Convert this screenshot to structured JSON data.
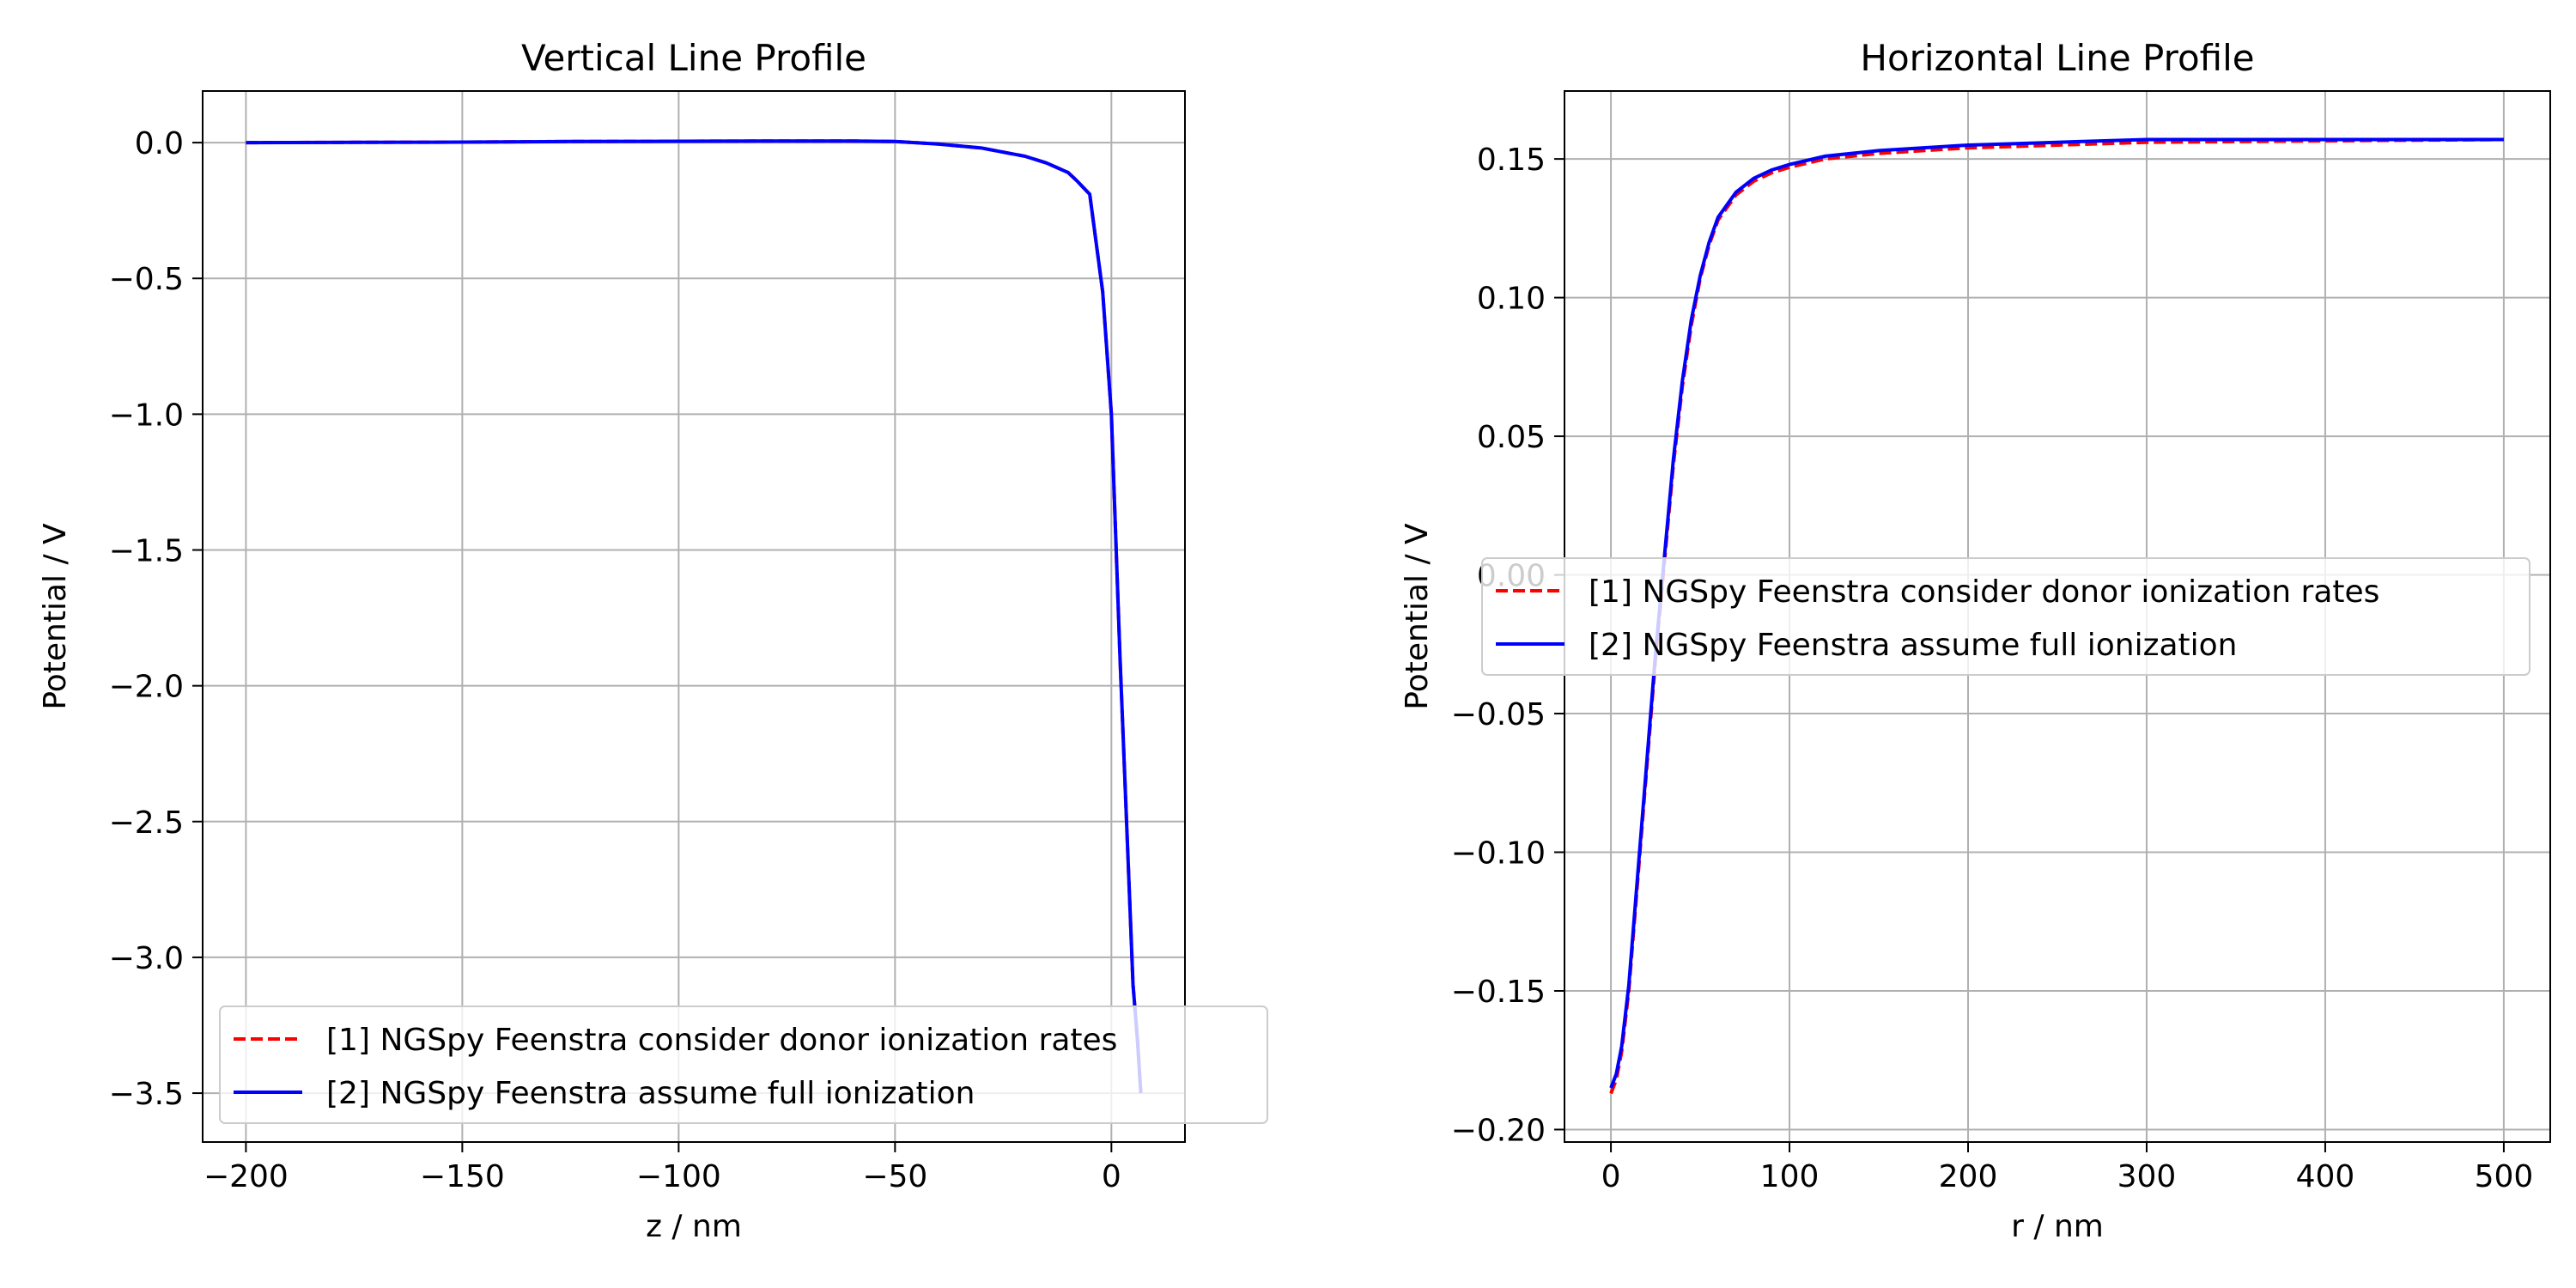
{
  "colors": {
    "series1": "#ff0000",
    "series2": "#0000ff",
    "grid": "#b0b0b0",
    "axis": "#000000"
  },
  "chart_data": [
    {
      "type": "line",
      "title": "Vertical Line Profile",
      "xlabel": "z / nm",
      "ylabel": "Potential / V",
      "xlim": [
        -210,
        17
      ],
      "ylim": [
        -3.68,
        0.19
      ],
      "xticks": [
        -200,
        -150,
        -100,
        -50,
        0
      ],
      "xtick_labels": [
        "−200",
        "−150",
        "−100",
        "−50",
        "0"
      ],
      "yticks": [
        0.0,
        -0.5,
        -1.0,
        -1.5,
        -2.0,
        -2.5,
        -3.0,
        -3.5
      ],
      "ytick_labels": [
        "0.0",
        "−0.5",
        "−1.0",
        "−1.5",
        "−2.0",
        "−2.5",
        "−3.0",
        "−3.5"
      ],
      "grid": true,
      "legend_position": "lower-right",
      "series": [
        {
          "name": "[1] NGSpy Feenstra consider donor ionization rates",
          "style": "dashed",
          "x": [
            -200,
            -175,
            -150,
            -125,
            -100,
            -75,
            -60,
            -50,
            -40,
            -30,
            -25,
            -20,
            -15,
            -10,
            -8,
            -5,
            -2,
            0,
            2,
            4,
            5,
            6,
            6.8
          ],
          "y": [
            0.0,
            0.001,
            0.002,
            0.004,
            0.005,
            0.006,
            0.006,
            0.004,
            -0.005,
            -0.02,
            -0.035,
            -0.05,
            -0.075,
            -0.11,
            -0.14,
            -0.19,
            -0.55,
            -1.0,
            -1.9,
            -2.7,
            -3.1,
            -3.3,
            -3.5
          ]
        },
        {
          "name": "[2] NGSpy Feenstra assume full ionization",
          "style": "solid",
          "x": [
            -200,
            -175,
            -150,
            -125,
            -100,
            -75,
            -60,
            -50,
            -40,
            -30,
            -25,
            -20,
            -15,
            -10,
            -8,
            -5,
            -2,
            0,
            2,
            4,
            5,
            6,
            6.8
          ],
          "y": [
            0.0,
            0.001,
            0.002,
            0.004,
            0.005,
            0.006,
            0.006,
            0.004,
            -0.005,
            -0.02,
            -0.035,
            -0.05,
            -0.075,
            -0.11,
            -0.14,
            -0.19,
            -0.55,
            -1.0,
            -1.9,
            -2.7,
            -3.1,
            -3.3,
            -3.5
          ]
        }
      ]
    },
    {
      "type": "line",
      "title": "Horizontal Line Profile",
      "xlabel": "r / nm",
      "ylabel": "Potential / V",
      "xlim": [
        -26,
        526
      ],
      "ylim": [
        -0.2045,
        0.1745
      ],
      "xticks": [
        0,
        100,
        200,
        300,
        400,
        500
      ],
      "xtick_labels": [
        "0",
        "100",
        "200",
        "300",
        "400",
        "500"
      ],
      "yticks": [
        0.15,
        0.1,
        0.05,
        0.0,
        -0.05,
        -0.1,
        -0.15,
        -0.2
      ],
      "ytick_labels": [
        "0.15",
        "0.10",
        "0.05",
        "0.00",
        "−0.05",
        "−0.10",
        "−0.15",
        "−0.20"
      ],
      "grid": true,
      "legend_position": "center-right",
      "series": [
        {
          "name": "[1] NGSpy Feenstra consider donor ionization rates",
          "style": "dashed",
          "x": [
            0,
            3,
            6,
            10,
            15,
            20,
            25,
            30,
            35,
            40,
            45,
            50,
            55,
            60,
            70,
            80,
            90,
            100,
            120,
            150,
            200,
            250,
            300,
            400,
            500
          ],
          "y": [
            -0.187,
            -0.182,
            -0.172,
            -0.15,
            -0.11,
            -0.07,
            -0.03,
            0.005,
            0.04,
            0.068,
            0.09,
            0.107,
            0.119,
            0.128,
            0.137,
            0.142,
            0.145,
            0.147,
            0.15,
            0.152,
            0.154,
            0.155,
            0.156,
            0.1565,
            0.157
          ]
        },
        {
          "name": "[2] NGSpy Feenstra assume full ionization",
          "style": "solid",
          "x": [
            0,
            3,
            6,
            10,
            15,
            20,
            25,
            30,
            35,
            40,
            45,
            50,
            55,
            60,
            70,
            80,
            90,
            100,
            120,
            150,
            200,
            250,
            300,
            400,
            500
          ],
          "y": [
            -0.185,
            -0.18,
            -0.17,
            -0.148,
            -0.108,
            -0.068,
            -0.028,
            0.007,
            0.042,
            0.07,
            0.092,
            0.108,
            0.12,
            0.129,
            0.138,
            0.143,
            0.146,
            0.148,
            0.151,
            0.153,
            0.155,
            0.156,
            0.157,
            0.157,
            0.157
          ]
        }
      ]
    }
  ]
}
